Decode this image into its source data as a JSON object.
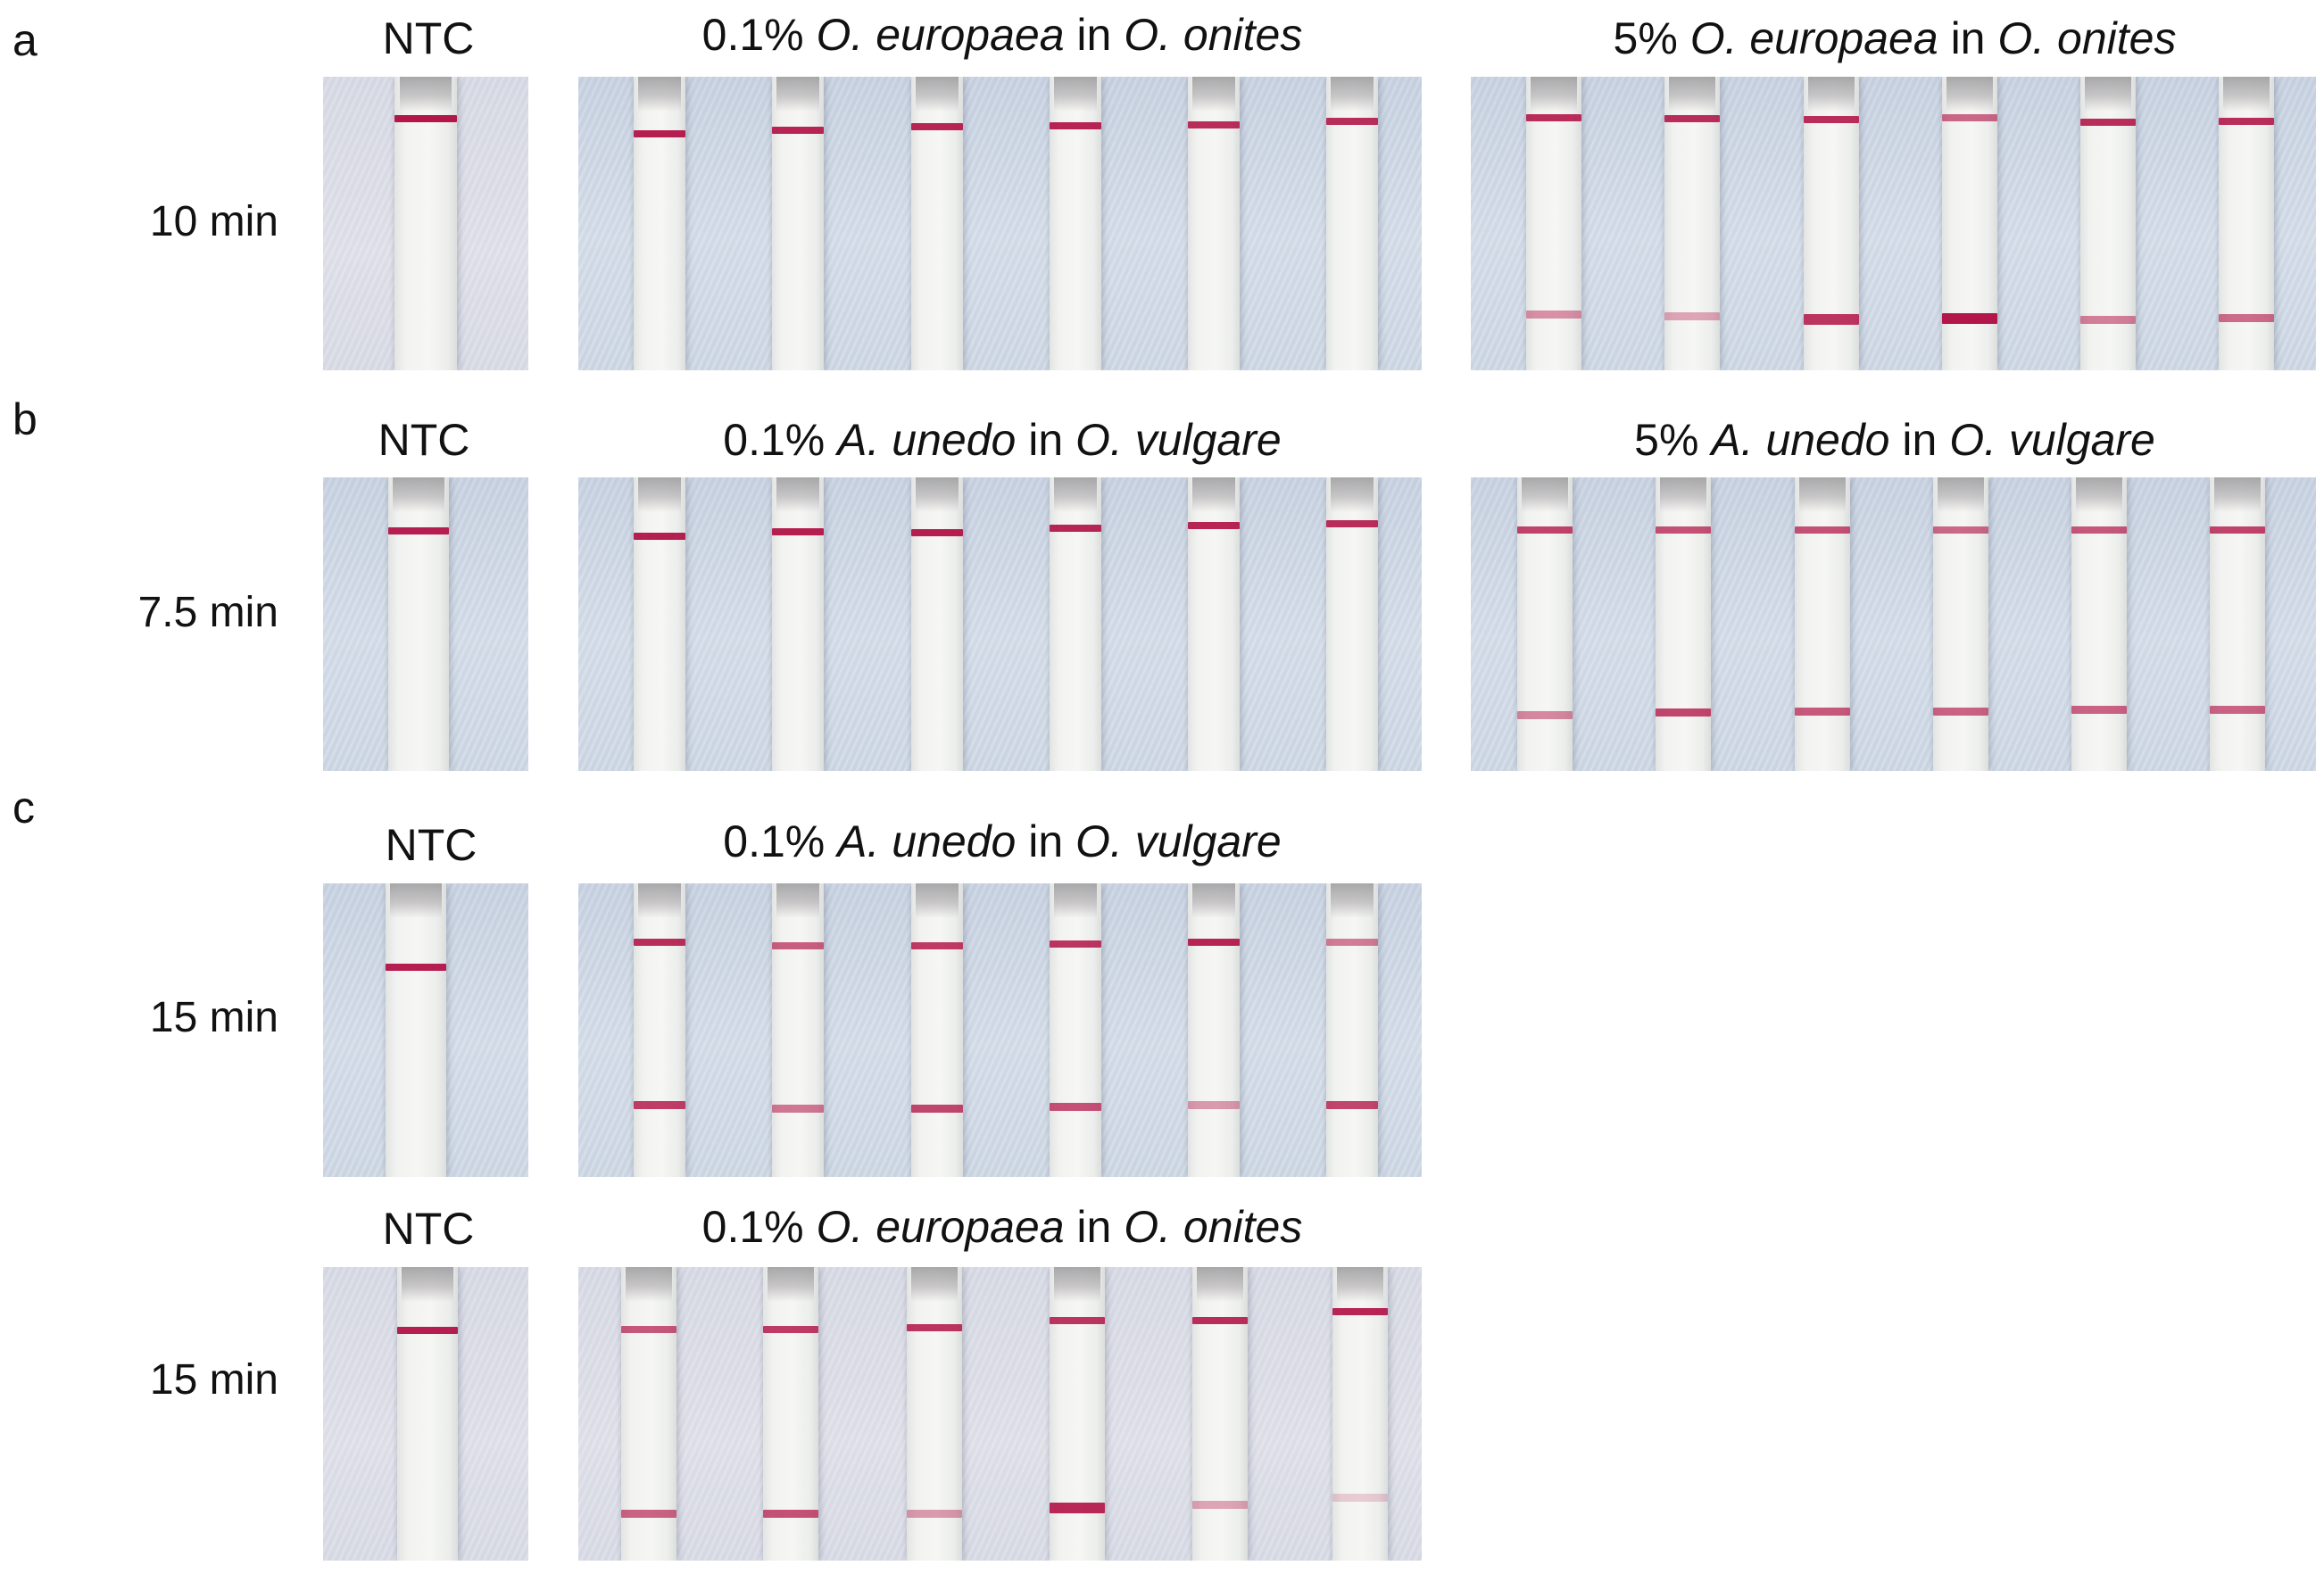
{
  "panels": {
    "a": {
      "letter": "a",
      "time": "10 min",
      "ntc_title": "NTC",
      "group1_title": {
        "pre": "0.1% ",
        "sp1": "O. europaea",
        "mid": " in ",
        "sp2": "O. onites"
      },
      "group2_title": {
        "pre": "5% ",
        "sp1": "O. europaea",
        "mid": " in ",
        "sp2": "O. onites"
      }
    },
    "b": {
      "letter": "b",
      "time": "7.5 min",
      "ntc_title": "NTC",
      "group1_title": {
        "pre": "0.1% ",
        "sp1": "A. unedo",
        "mid": " in ",
        "sp2": "O. vulgare"
      },
      "group2_title": {
        "pre": "5% ",
        "sp1": "A. unedo",
        "mid": " in ",
        "sp2": "O. vulgare"
      }
    },
    "c": {
      "letter": "c",
      "row1": {
        "time": "15 min",
        "ntc_title": "NTC",
        "group1_title": {
          "pre": "0.1% ",
          "sp1": "A. unedo",
          "mid": " in ",
          "sp2": "O. vulgare"
        }
      },
      "row2": {
        "time": "15 min",
        "ntc_title": "NTC",
        "group1_title": {
          "pre": "0.1% ",
          "sp1": "O. europaea",
          "mid": " in ",
          "sp2": "O. onites"
        }
      }
    }
  },
  "colors": {
    "band": "#b3174a",
    "background": "#ffffff",
    "bench": "#cfd9e6"
  },
  "strip_results": {
    "a_ntc": [
      {
        "control": 1.0
      }
    ],
    "a_g1": [
      {
        "control": 0.95,
        "test": 0
      },
      {
        "control": 0.9,
        "test": 0
      },
      {
        "control": 0.9,
        "test": 0
      },
      {
        "control": 0.9,
        "test": 0
      },
      {
        "control": 0.85,
        "test": 0
      },
      {
        "control": 0.85,
        "test": 0
      }
    ],
    "a_g2": [
      {
        "control": 0.85,
        "test": 0.35
      },
      {
        "control": 0.85,
        "test": 0.25
      },
      {
        "control": 0.85,
        "test": 0.85
      },
      {
        "control": 0.45,
        "test": 1.0
      },
      {
        "control": 0.85,
        "test": 0.45
      },
      {
        "control": 0.85,
        "test": 0.55
      }
    ],
    "b_ntc": [
      {
        "control": 0.95
      }
    ],
    "b_g1": [
      {
        "control": 0.95,
        "test": 0
      },
      {
        "control": 0.95,
        "test": 0
      },
      {
        "control": 0.95,
        "test": 0
      },
      {
        "control": 0.9,
        "test": 0
      },
      {
        "control": 0.9,
        "test": 0
      },
      {
        "control": 0.85,
        "test": 0
      }
    ],
    "b_g2": [
      {
        "control": 0.7,
        "test": 0.4
      },
      {
        "control": 0.6,
        "test": 0.75
      },
      {
        "control": 0.6,
        "test": 0.65
      },
      {
        "control": 0.45,
        "test": 0.6
      },
      {
        "control": 0.55,
        "test": 0.6
      },
      {
        "control": 0.7,
        "test": 0.6
      }
    ],
    "c1_ntc": [
      {
        "control": 0.95
      }
    ],
    "c1_g1": [
      {
        "control": 0.85,
        "test": 0.8
      },
      {
        "control": 0.5,
        "test": 0.5
      },
      {
        "control": 0.75,
        "test": 0.75
      },
      {
        "control": 0.8,
        "test": 0.7
      },
      {
        "control": 0.9,
        "test": 0.3
      },
      {
        "control": 0.3,
        "test": 0.75
      }
    ],
    "c2_ntc": [
      {
        "control": 0.95
      }
    ],
    "c2_g1": [
      {
        "control": 0.55,
        "test": 0.6
      },
      {
        "control": 0.75,
        "test": 0.7
      },
      {
        "control": 0.8,
        "test": 0.3
      },
      {
        "control": 0.8,
        "test": 0.9
      },
      {
        "control": 0.85,
        "test": 0.25
      },
      {
        "control": 0.9,
        "test": 0.05
      }
    ]
  }
}
